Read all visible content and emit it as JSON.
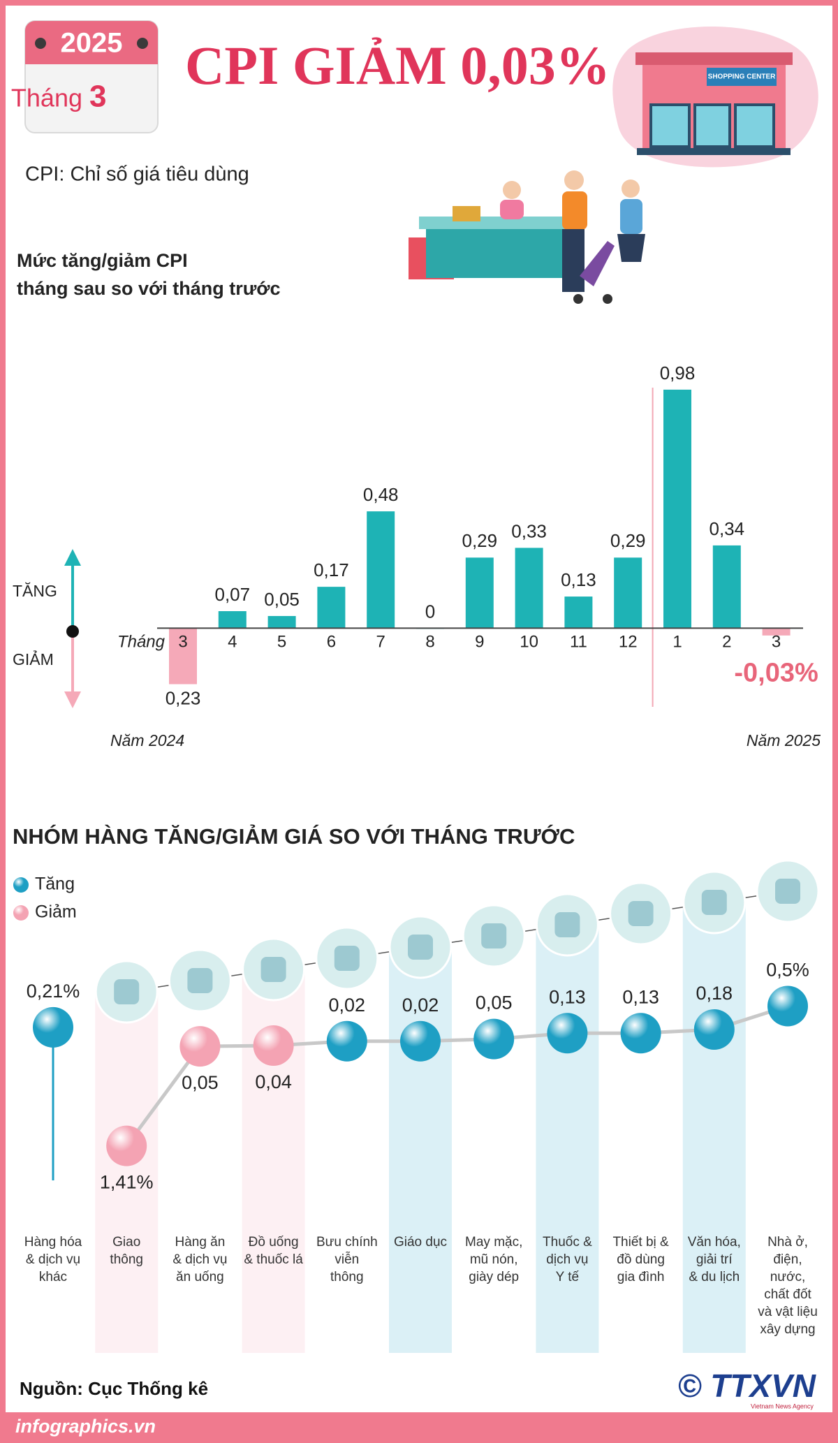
{
  "header": {
    "year": "2025",
    "month_label": "Tháng",
    "month": "3",
    "title": "CPI GIẢM 0,03%",
    "subtitle": "CPI: Chỉ số giá tiêu dùng",
    "sign": "SHOPPING CENTER"
  },
  "chart_data": [
    {
      "type": "bar",
      "title": [
        "Mức tăng/giảm CPI",
        "tháng sau so với tháng trước"
      ],
      "x_label": "Tháng",
      "up_label": "TĂNG",
      "down_label": "GIẢM",
      "group_labels": [
        "Năm 2024",
        "Năm 2025"
      ],
      "categories": [
        "3",
        "4",
        "5",
        "6",
        "7",
        "8",
        "9",
        "10",
        "11",
        "12",
        "1",
        "2",
        "3"
      ],
      "values": [
        -0.23,
        0.07,
        0.05,
        0.17,
        0.48,
        0,
        0.29,
        0.33,
        0.13,
        0.29,
        0.98,
        0.34,
        -0.03
      ],
      "value_labels": [
        "0,23",
        "0,07",
        "0,05",
        "0,17",
        "0,48",
        "0",
        "0,29",
        "0,33",
        "0,13",
        "0,29",
        "0,98",
        "0,34",
        "-0,03%"
      ],
      "ylim": [
        -0.26,
        1.06
      ],
      "colors": {
        "increase": "#1eb3b5",
        "decrease": "#f5a9b8"
      }
    },
    {
      "type": "dot",
      "title": "NHÓM HÀNG TĂNG/GIẢM GIÁ SO VỚI THÁNG TRƯỚC",
      "legend": [
        {
          "name": "Tăng",
          "color": "#1e9fc4"
        },
        {
          "name": "Giảm",
          "color": "#f4a3b3"
        }
      ],
      "categories": [
        [
          "Hàng hóa",
          "& dịch vụ",
          "khác"
        ],
        [
          "Giao",
          "thông"
        ],
        [
          "Hàng ăn",
          "& dịch vụ",
          "ăn uống"
        ],
        [
          "Đồ uống",
          "& thuốc lá"
        ],
        [
          "Bưu chính",
          "viễn",
          "thông"
        ],
        [
          "Giáo dục"
        ],
        [
          "May mặc,",
          "mũ nón,",
          "giày dép"
        ],
        [
          "Thuốc &",
          "dịch vụ",
          "Y tế"
        ],
        [
          "Thiết bị &",
          "đồ dùng",
          "gia đình"
        ],
        [
          "Văn hóa,",
          "giải trí",
          "& du lịch"
        ],
        [
          "Nhà ở,",
          "điện,",
          "nước,",
          "chất đốt",
          "và vật liệu",
          "xây dựng"
        ]
      ],
      "values": [
        0.21,
        -1.41,
        -0.05,
        -0.04,
        0.02,
        0.02,
        0.05,
        0.13,
        0.13,
        0.18,
        0.5
      ],
      "value_labels": [
        "0,21%",
        "1,41%",
        "0,05",
        "0,04",
        "0,02",
        "0,02",
        "0,05",
        "0,13",
        "0,13",
        "0,18",
        "0,5%"
      ],
      "ylim": [
        -1.5,
        0.6
      ]
    }
  ],
  "footer": {
    "source": "Nguồn: Cục Thống kê",
    "site": "infographics.vn",
    "agency": "© TTXVN",
    "agency_en": "Vietnam News Agency"
  }
}
